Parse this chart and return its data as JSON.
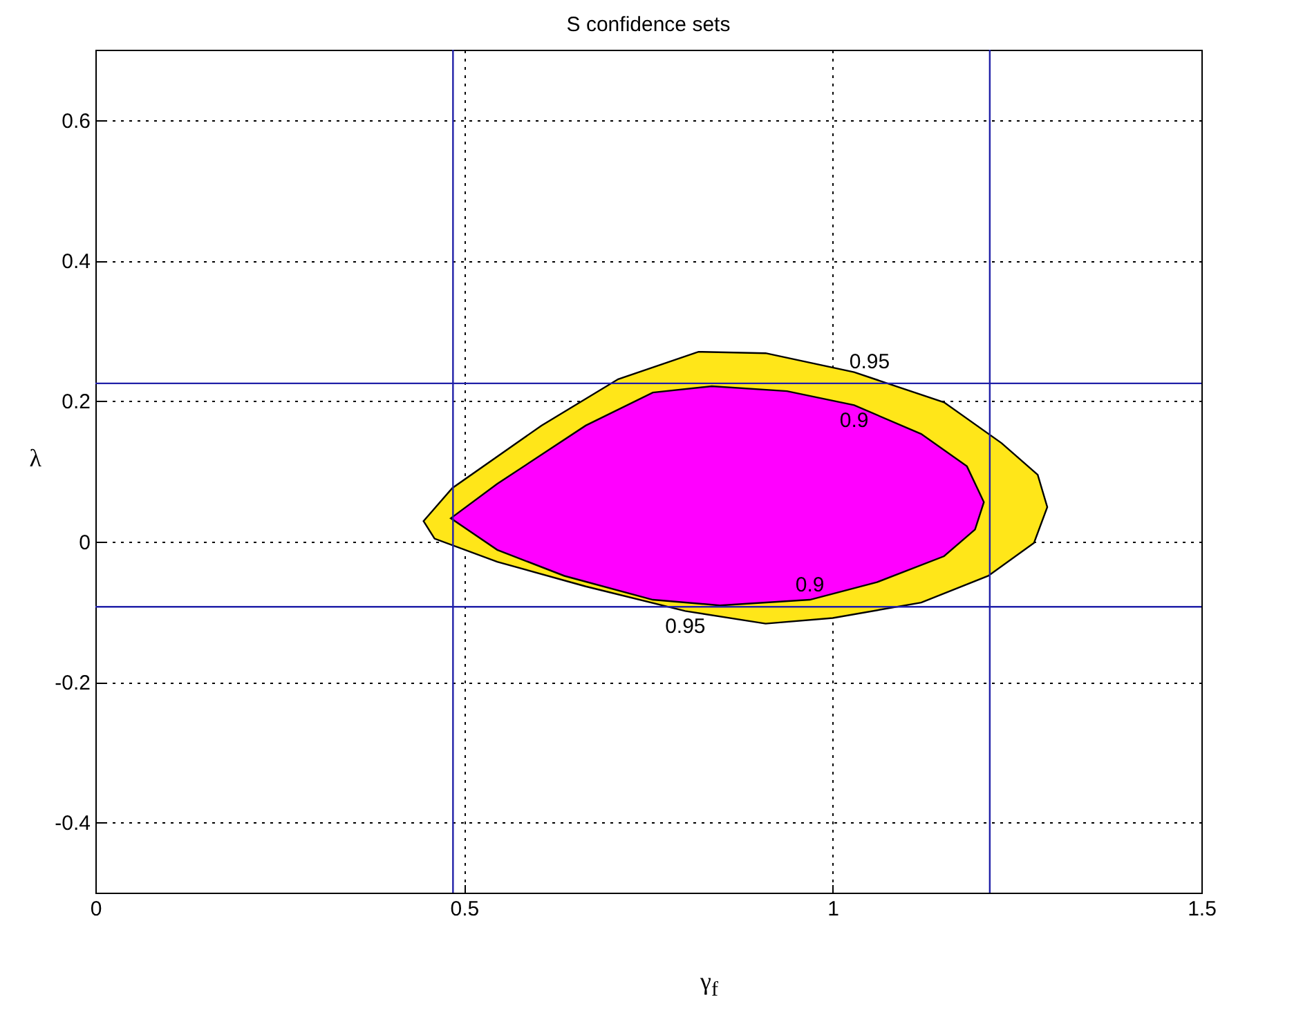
{
  "chart_data": {
    "type": "area",
    "title": "S confidence sets",
    "xlabel": "γ$_{f}$",
    "ylabel": "λ",
    "xlim": [
      0,
      1.5
    ],
    "xticks": [
      0,
      0.5,
      1,
      1.5
    ],
    "ylim": [
      -0.5,
      0.7
    ],
    "yticks": [
      -0.4,
      -0.2,
      0,
      0.2,
      0.4,
      0.6
    ],
    "grid": true,
    "series": [
      {
        "color": "#ffe619",
        "x": [
          0.445,
          0.484,
          0.605,
          0.709,
          0.818,
          0.909,
          1.029,
          1.151,
          1.229,
          1.278,
          1.291,
          1.273,
          1.211,
          1.12,
          1.0,
          0.909,
          0.8,
          0.665,
          0.545,
          0.46
        ],
        "values": [
          0.029,
          0.076,
          0.165,
          0.231,
          0.27,
          0.268,
          0.241,
          0.198,
          0.14,
          0.095,
          0.049,
          -0.002,
          -0.049,
          -0.087,
          -0.109,
          -0.117,
          -0.099,
          -0.064,
          -0.029,
          0.004
        ]
      },
      {
        "color": "#ff00ff",
        "x": [
          0.482,
          0.545,
          0.665,
          0.756,
          0.836,
          0.938,
          1.029,
          1.12,
          1.182,
          1.205,
          1.193,
          1.151,
          1.06,
          0.969,
          0.847,
          0.756,
          0.636,
          0.545
        ],
        "values": [
          0.033,
          0.082,
          0.165,
          0.212,
          0.221,
          0.214,
          0.194,
          0.153,
          0.107,
          0.056,
          0.017,
          -0.021,
          -0.058,
          -0.083,
          -0.091,
          -0.083,
          -0.049,
          -0.012
        ]
      }
    ],
    "ref_lines": [
      {
        "axis": "x",
        "value": 0.485,
        "color": "#2020a8"
      },
      {
        "axis": "x",
        "value": 1.213,
        "color": "#2020a8"
      },
      {
        "axis": "y",
        "value": 0.225,
        "color": "#2020a8"
      },
      {
        "axis": "y",
        "value": -0.093,
        "color": "#2020a8"
      }
    ],
    "annotations": [
      {
        "text": "0.95",
        "x": 1.05,
        "y": 0.235
      },
      {
        "text": "0.9",
        "x": 1.029,
        "y": 0.194
      },
      {
        "text": "0.95",
        "x": 0.8,
        "y": -0.099
      },
      {
        "text": "0.9",
        "x": 0.969,
        "y": -0.083
      }
    ]
  }
}
